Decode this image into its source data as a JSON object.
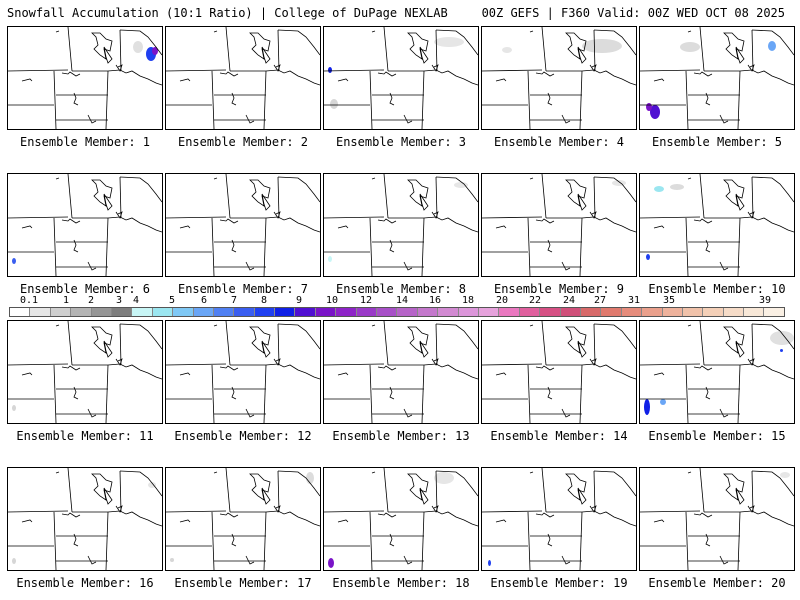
{
  "header": {
    "left": "Snowfall Accumulation (10:1 Ratio) | College of DuPage NEXLAB",
    "right": "00Z GEFS | F360 Valid: 00Z WED OCT 08 2025"
  },
  "colorbar": {
    "labels": [
      "0.1",
      "1",
      "2",
      "3",
      "4",
      "5",
      "6",
      "7",
      "8",
      "9",
      "10",
      "12",
      "14",
      "16",
      "18",
      "20",
      "22",
      "24",
      "27",
      "31",
      "35",
      "39"
    ],
    "colors": [
      "#ffffff",
      "#e6e6e6",
      "#cfcfcf",
      "#b4b4b4",
      "#969696",
      "#7e7e7e",
      "#c8f6f6",
      "#9be6f0",
      "#7fc8f5",
      "#6aa6f6",
      "#5080f2",
      "#3a5ef0",
      "#2040f0",
      "#1020e6",
      "#5010d2",
      "#7a14c8",
      "#8e24c8",
      "#9a3ac8",
      "#a850c8",
      "#b664c8",
      "#c478cc",
      "#d28ad2",
      "#dc96da",
      "#e6a2dc",
      "#ea78c0",
      "#e0609e",
      "#d65084",
      "#d0507a",
      "#d86a6a",
      "#e07a6e",
      "#e68c7c",
      "#eaa08c",
      "#eeb29c",
      "#f0c2aa",
      "#f4d0b8",
      "#f6dcc8",
      "#f8e8d8",
      "#faf0e4"
    ]
  },
  "panel_label_prefix": "Ensemble Member: ",
  "members": [
    {
      "id": "1"
    },
    {
      "id": "2"
    },
    {
      "id": "3"
    },
    {
      "id": "4"
    },
    {
      "id": "5"
    },
    {
      "id": "6"
    },
    {
      "id": "7"
    },
    {
      "id": "8"
    },
    {
      "id": "9"
    },
    {
      "id": "10"
    },
    {
      "id": "11"
    },
    {
      "id": "12"
    },
    {
      "id": "13"
    },
    {
      "id": "14"
    },
    {
      "id": "15"
    },
    {
      "id": "16"
    },
    {
      "id": "17"
    },
    {
      "id": "18"
    },
    {
      "id": "19"
    },
    {
      "id": "20"
    }
  ]
}
